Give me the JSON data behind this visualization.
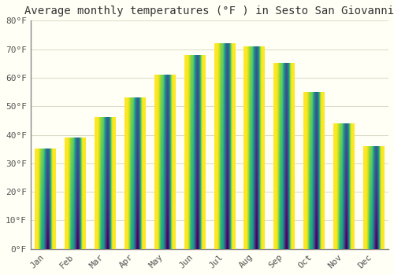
{
  "title": "Average monthly temperatures (°F ) in Sesto San Giovanni",
  "months": [
    "Jan",
    "Feb",
    "Mar",
    "Apr",
    "May",
    "Jun",
    "Jul",
    "Aug",
    "Sep",
    "Oct",
    "Nov",
    "Dec"
  ],
  "values": [
    35,
    39,
    46,
    53,
    61,
    68,
    72,
    71,
    65,
    55,
    44,
    36
  ],
  "bar_color_light": "#FFD060",
  "bar_color_dark": "#FFA020",
  "ylim": [
    0,
    80
  ],
  "yticks": [
    0,
    10,
    20,
    30,
    40,
    50,
    60,
    70,
    80
  ],
  "ytick_labels": [
    "0°F",
    "10°F",
    "20°F",
    "30°F",
    "40°F",
    "50°F",
    "60°F",
    "70°F",
    "80°F"
  ],
  "background_color": "#FFFFF5",
  "grid_color": "#DDDDCC",
  "title_fontsize": 10,
  "tick_fontsize": 8,
  "font_family": "monospace",
  "bar_width": 0.7
}
